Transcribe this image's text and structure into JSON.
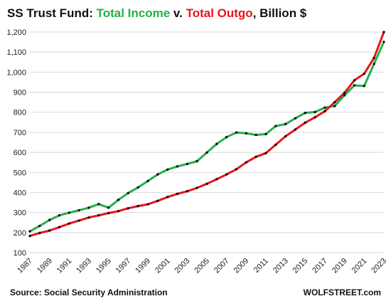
{
  "chart_data": {
    "type": "line",
    "title_parts": [
      {
        "text": "SS Trust Fund: ",
        "color": "#111111"
      },
      {
        "text": "Total Income",
        "color": "#22b04b"
      },
      {
        "text": " v. ",
        "color": "#111111"
      },
      {
        "text": "Total Outgo",
        "color": "#e8141c"
      },
      {
        "text": ", Billion $",
        "color": "#111111"
      }
    ],
    "source": "Source: Social Security Administration",
    "brand": "WOLFSTREET.com",
    "ylim": [
      100,
      1200
    ],
    "yticks": [
      100,
      200,
      300,
      400,
      500,
      600,
      700,
      800,
      900,
      1000,
      1100,
      1200
    ],
    "ytick_labels": [
      "100",
      "200",
      "300",
      "400",
      "500",
      "600",
      "700",
      "800",
      "900",
      "1,000",
      "1,100",
      "1,200"
    ],
    "x": [
      1987,
      1988,
      1989,
      1990,
      1991,
      1992,
      1993,
      1994,
      1995,
      1996,
      1997,
      1998,
      1999,
      2000,
      2001,
      2002,
      2003,
      2004,
      2005,
      2006,
      2007,
      2008,
      2009,
      2010,
      2011,
      2012,
      2013,
      2014,
      2015,
      2016,
      2017,
      2018,
      2019,
      2020,
      2021,
      2022,
      2023
    ],
    "xtick_labels": [
      "1987",
      "1989",
      "1991",
      "1993",
      "1995",
      "1997",
      "1999",
      "2001",
      "2003",
      "2005",
      "2007",
      "2009",
      "2011",
      "2013",
      "2015",
      "2017",
      "2019",
      "2021",
      "2023"
    ],
    "grid": true,
    "series": [
      {
        "key": "income",
        "color": "#22b04b",
        "values": [
          206,
          233,
          263,
          286,
          299,
          311,
          324,
          342,
          324,
          363,
          397,
          425,
          457,
          490,
          514,
          530,
          542,
          556,
          599,
          642,
          676,
          699,
          695,
          687,
          691,
          731,
          741,
          770,
          797,
          801,
          823,
          831,
          885,
          934,
          931,
          1041,
          1151
        ]
      },
      {
        "key": "outgo",
        "color": "#e8141c",
        "values": [
          183,
          198,
          210,
          227,
          245,
          260,
          275,
          286,
          297,
          307,
          321,
          332,
          341,
          358,
          377,
          393,
          406,
          423,
          443,
          466,
          490,
          516,
          550,
          578,
          596,
          638,
          680,
          714,
          748,
          775,
          805,
          850,
          897,
          959,
          992,
          1071,
          1200
        ]
      }
    ]
  }
}
